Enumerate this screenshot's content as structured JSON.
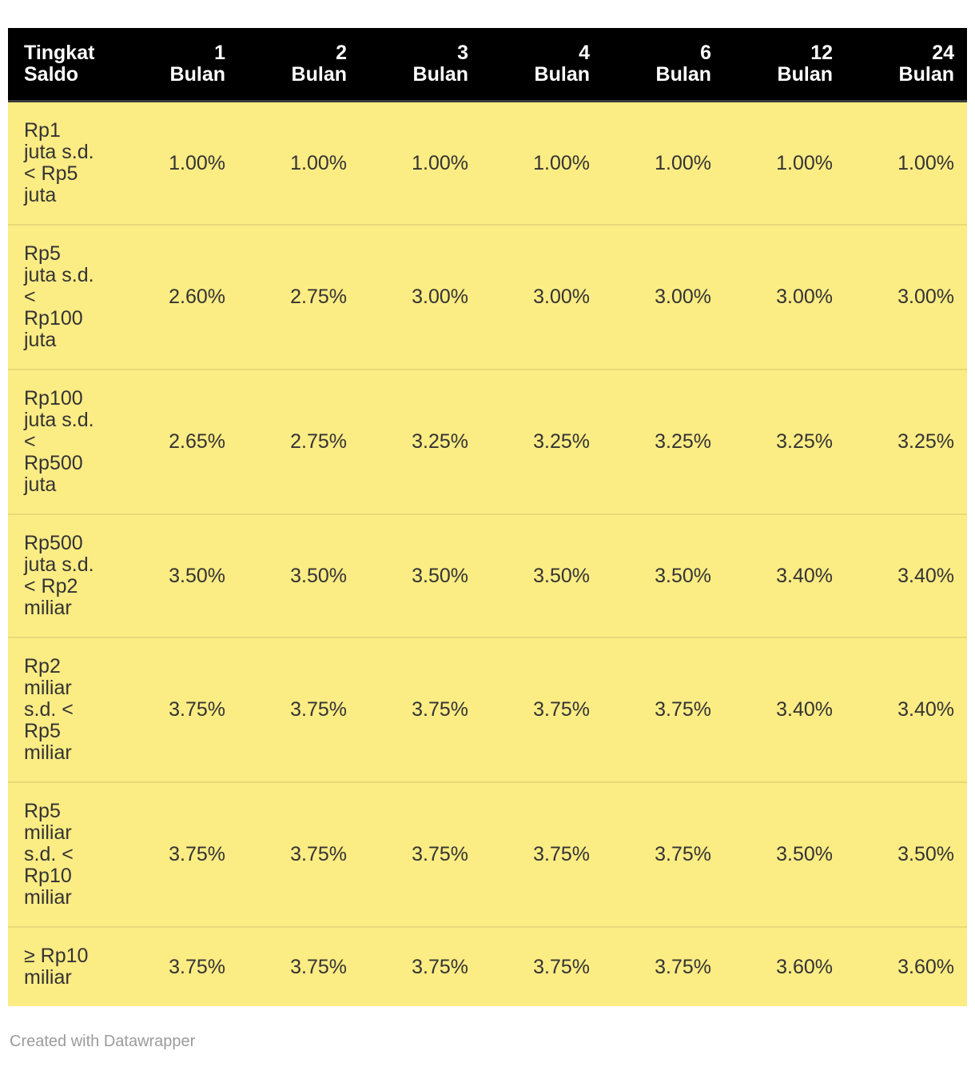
{
  "chart_data": {
    "type": "table",
    "columns": [
      "Tingkat\nSaldo",
      "1\nBulan",
      "2\nBulan",
      "3\nBulan",
      "4\nBulan",
      "6\nBulan",
      "12\nBulan",
      "24\nBulan"
    ],
    "rows": [
      {
        "label": "Rp1\njuta s.d.\n< Rp5\njuta",
        "values": [
          "1.00%",
          "1.00%",
          "1.00%",
          "1.00%",
          "1.00%",
          "1.00%",
          "1.00%"
        ]
      },
      {
        "label": "Rp5\njuta s.d.\n<\nRp100\njuta",
        "values": [
          "2.60%",
          "2.75%",
          "3.00%",
          "3.00%",
          "3.00%",
          "3.00%",
          "3.00%"
        ]
      },
      {
        "label": "Rp100\njuta s.d.\n<\nRp500\njuta",
        "values": [
          "2.65%",
          "2.75%",
          "3.25%",
          "3.25%",
          "3.25%",
          "3.25%",
          "3.25%"
        ]
      },
      {
        "label": "Rp500\njuta s.d.\n< Rp2\nmiliar",
        "values": [
          "3.50%",
          "3.50%",
          "3.50%",
          "3.50%",
          "3.50%",
          "3.40%",
          "3.40%"
        ]
      },
      {
        "label": "Rp2\nmiliar\ns.d. <\nRp5\nmiliar",
        "values": [
          "3.75%",
          "3.75%",
          "3.75%",
          "3.75%",
          "3.75%",
          "3.40%",
          "3.40%"
        ]
      },
      {
        "label": "Rp5\nmiliar\ns.d. <\nRp10\nmiliar",
        "values": [
          "3.75%",
          "3.75%",
          "3.75%",
          "3.75%",
          "3.75%",
          "3.50%",
          "3.50%"
        ]
      },
      {
        "label": "≥ Rp10\nmiliar",
        "values": [
          "3.75%",
          "3.75%",
          "3.75%",
          "3.75%",
          "3.75%",
          "3.60%",
          "3.60%"
        ]
      }
    ],
    "title": "",
    "legend_position": "none",
    "grid": "row-separators-only"
  },
  "footer": {
    "credit": "Created with Datawrapper"
  },
  "colors": {
    "header_bg": "#000000",
    "header_text": "#ffffff",
    "header_border": "#3b3b3b",
    "row_bg": "#fcec84",
    "body_text": "#333333",
    "credit_text": "#9b9b9b",
    "page_bg": "#ffffff"
  }
}
